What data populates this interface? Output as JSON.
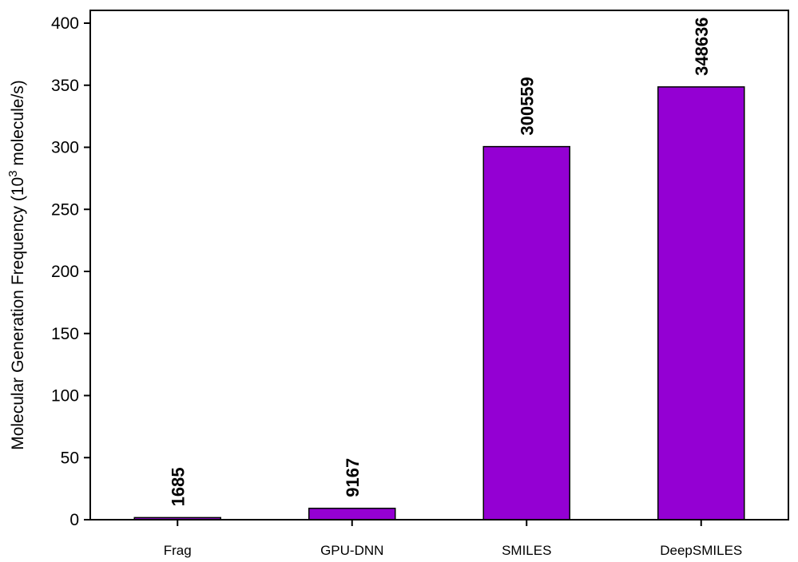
{
  "chart_data": {
    "type": "bar",
    "title": "",
    "xlabel": "",
    "ylabel": "Molecular Generation Frequency (10",
    "ylabel_superscript": "3",
    "ylabel_suffix": " molecule/s)",
    "categories": [
      "Frag",
      "GPU-DNN",
      "SMILES",
      "DeepSMILES"
    ],
    "values": [
      1.685,
      9.167,
      300.559,
      348.636
    ],
    "data_labels": [
      "1685",
      "9167",
      "300559",
      "348636"
    ],
    "ylim": [
      0,
      400
    ],
    "yticks": [
      0,
      50,
      100,
      150,
      200,
      250,
      300,
      350,
      400
    ],
    "ytick_labels": [
      "0",
      "50",
      "100",
      "150",
      "200",
      "250",
      "300",
      "350",
      "400"
    ],
    "grid": false,
    "legend": "none",
    "colors": {
      "bar_fill": "#9400d3",
      "bar_stroke": "#000000",
      "axis": "#000000"
    }
  }
}
